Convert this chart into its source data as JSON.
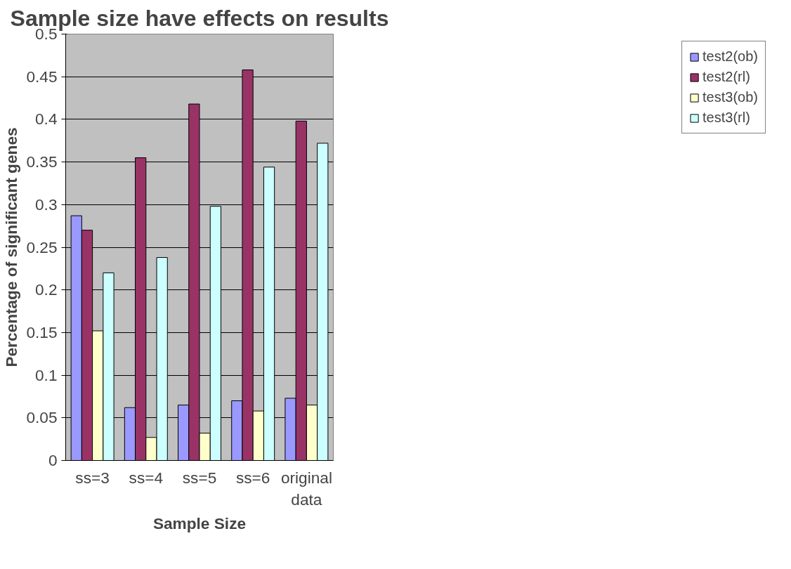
{
  "chart_data": {
    "type": "bar",
    "title": "Sample size have effects on results",
    "xlabel": "Sample Size",
    "ylabel": "Percentage of significant genes",
    "categories": [
      "ss=3",
      "ss=4",
      "ss=5",
      "ss=6",
      "original data"
    ],
    "series": [
      {
        "name": "test2(ob)",
        "color": "#9999ff",
        "values": [
          0.287,
          0.062,
          0.065,
          0.07,
          0.073
        ]
      },
      {
        "name": "test2(rl)",
        "color": "#993366",
        "values": [
          0.27,
          0.355,
          0.418,
          0.458,
          0.398
        ]
      },
      {
        "name": "test3(ob)",
        "color": "#ffffcc",
        "values": [
          0.152,
          0.027,
          0.032,
          0.058,
          0.065
        ]
      },
      {
        "name": "test3(rl)",
        "color": "#ccffff",
        "values": [
          0.22,
          0.238,
          0.298,
          0.344,
          0.372
        ]
      }
    ],
    "ylim": [
      0,
      0.5
    ],
    "yticks": [
      0,
      0.05,
      0.1,
      0.15,
      0.2,
      0.25,
      0.3,
      0.35,
      0.4,
      0.45,
      0.5
    ],
    "grid": "y",
    "legend": "right"
  }
}
